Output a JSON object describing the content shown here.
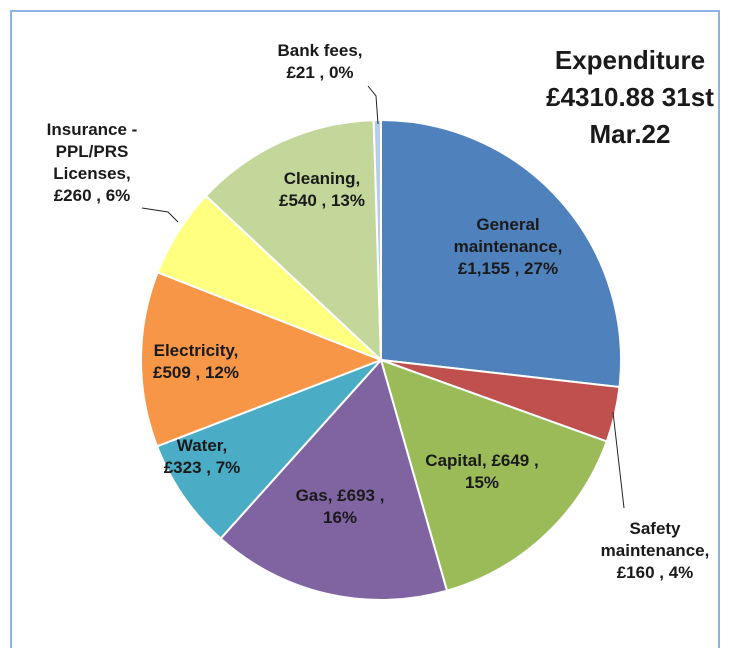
{
  "chart_data": {
    "type": "pie",
    "title": "Expenditure £4310.88 31st Mar.22",
    "categories": [
      "General maintenance,",
      "Safety maintenance,",
      "Capital,",
      "Gas,",
      "Water,",
      "Electricity,",
      "Insurance - PPL/PRS Licenses,",
      "Cleaning,",
      "Bank fees,"
    ],
    "values": [
      1155,
      160,
      649,
      693,
      323,
      509,
      260,
      540,
      21
    ],
    "value_labels": [
      "£1,155 , 27%",
      "£160 , 4%",
      "£649 , 15%",
      "£693 , 16%",
      "£323 , 7%",
      "£509 , 12%",
      "£260 , 6%",
      "£540 , 13%",
      "£21 , 0%"
    ],
    "colors": [
      "#4f81bd",
      "#c0504d",
      "#9bbb59",
      "#8064a2",
      "#4bacc6",
      "#f79646",
      "#ffff80",
      "#c4d79b",
      "#b7cde8"
    ]
  }
}
